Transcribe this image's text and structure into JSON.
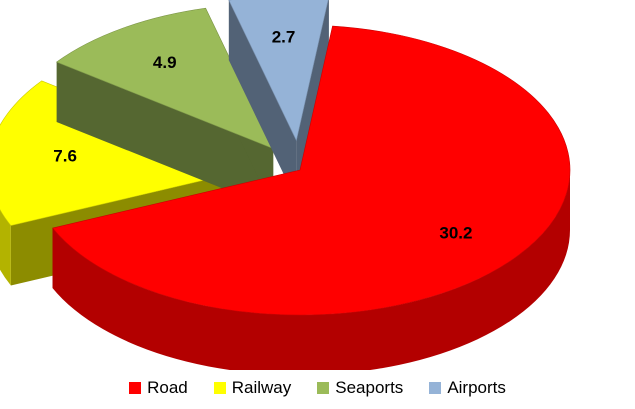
{
  "chart_data": {
    "type": "pie",
    "style": "3d-exploded",
    "categories": [
      "Road",
      "Railway",
      "Seaports",
      "Airports"
    ],
    "values": [
      30.2,
      7.6,
      4.9,
      2.7
    ],
    "value_labels": [
      "30.2",
      "7.6",
      "4.9",
      "2.7"
    ],
    "colors": [
      "#ff0000",
      "#ffff00",
      "#9bbb59",
      "#95b3d7"
    ],
    "legend_position": "bottom",
    "title": ""
  },
  "legend": {
    "items": [
      {
        "label": "Road",
        "color": "#ff0000"
      },
      {
        "label": "Railway",
        "color": "#ffff00"
      },
      {
        "label": "Seaports",
        "color": "#9bbb59"
      },
      {
        "label": "Airports",
        "color": "#95b3d7"
      }
    ]
  }
}
